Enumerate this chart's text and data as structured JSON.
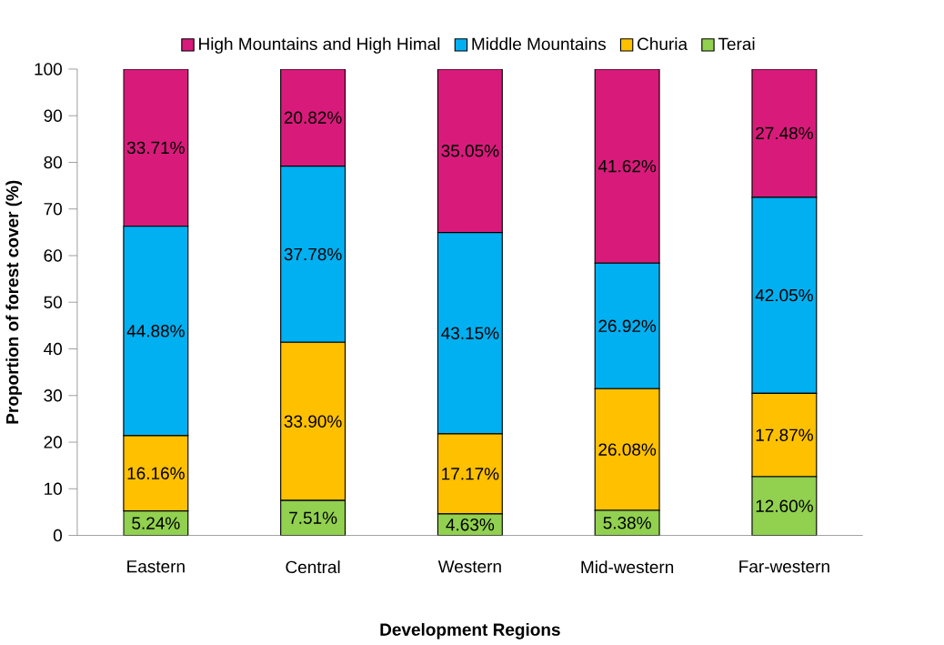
{
  "chart_data": {
    "type": "bar",
    "stacked": true,
    "xlabel": "Development Regions",
    "ylabel": "Proportion of forest cover (%)",
    "legend": "top",
    "categories": [
      "Eastern",
      "Central",
      "Western",
      "Mid-western",
      "Far-western"
    ],
    "series": [
      {
        "name": "Terai",
        "color": "#92d050",
        "values": [
          5.24,
          7.51,
          4.63,
          5.38,
          12.6
        ],
        "value_labels": [
          "5.24%",
          "7.51%",
          "4.63%",
          "5.38%",
          "12.60%"
        ]
      },
      {
        "name": "Churia",
        "color": "#ffc000",
        "values": [
          16.16,
          33.9,
          17.17,
          26.08,
          17.87
        ],
        "value_labels": [
          "16.16%",
          "33.90%",
          "17.17%",
          "26.08%",
          "17.87%"
        ]
      },
      {
        "name": "Middle Mountains",
        "color": "#00b0f0",
        "values": [
          44.88,
          37.78,
          43.15,
          26.92,
          42.05
        ],
        "value_labels": [
          "44.88%",
          "37.78%",
          "43.15%",
          "26.92%",
          "42.05%"
        ]
      },
      {
        "name": "High Mountains and High Himal",
        "color": "#d81b7a",
        "values": [
          33.71,
          20.82,
          35.05,
          41.62,
          27.48
        ],
        "value_labels": [
          "33.71%",
          "20.82%",
          "35.05%",
          "41.62%",
          "27.48%"
        ]
      }
    ],
    "ylim": [
      0,
      100
    ],
    "yticks": [
      0,
      10,
      20,
      30,
      40,
      50,
      60,
      70,
      80,
      90,
      100
    ]
  }
}
